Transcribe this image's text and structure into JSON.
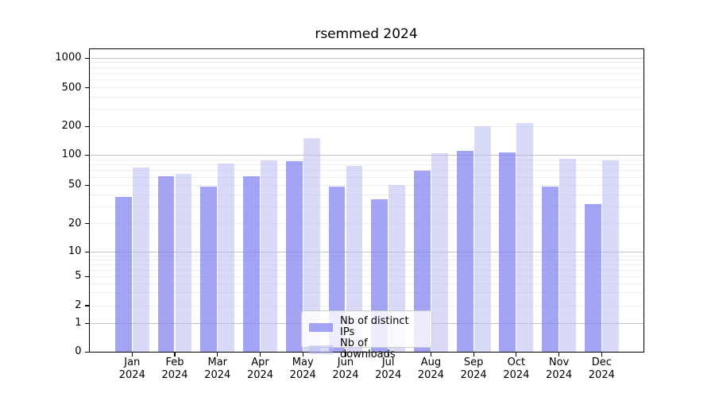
{
  "chart_data": {
    "type": "bar",
    "title": "rsemmed 2024",
    "categories": [
      "Jan 2024",
      "Feb 2024",
      "Mar 2024",
      "Apr 2024",
      "May 2024",
      "Jun 2024",
      "Jul 2024",
      "Aug 2024",
      "Sep 2024",
      "Oct 2024",
      "Nov 2024",
      "Dec 2024"
    ],
    "series": [
      {
        "name": "Nb of distinct IPs",
        "color": "#a4a4f4",
        "values": [
          38,
          62,
          48,
          61,
          87,
          48,
          36,
          70,
          110,
          107,
          48,
          32
        ]
      },
      {
        "name": "Nb of downloads",
        "color": "#d8d8f7",
        "values": [
          75,
          65,
          82,
          89,
          152,
          78,
          50,
          105,
          200,
          215,
          91,
          88
        ]
      }
    ],
    "xlabel": "",
    "ylabel": "",
    "yscale": "symlog",
    "yticks": [
      0,
      1,
      2,
      5,
      10,
      20,
      50,
      100,
      200,
      500,
      1000
    ],
    "ylim": [
      0,
      1260
    ],
    "grid": "horizontal major+minor",
    "legend_position": "lower center"
  }
}
